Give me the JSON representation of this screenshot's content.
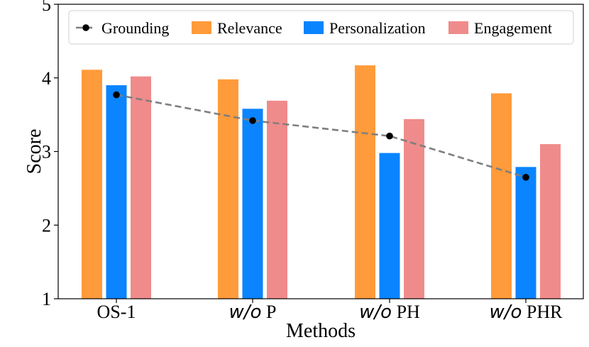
{
  "chart_data": {
    "type": "bar",
    "xlabel": "Methods",
    "ylabel": "Score",
    "ylim": [
      1,
      5
    ],
    "yticks": [
      "1",
      "2",
      "3",
      "4",
      "5"
    ],
    "categories": [
      {
        "prefix": "",
        "name": "OS-1"
      },
      {
        "prefix": "w/o",
        "name": " P"
      },
      {
        "prefix": "w/o",
        "name": " PH"
      },
      {
        "prefix": "w/o",
        "name": " PHR"
      }
    ],
    "series": [
      {
        "name": "Relevance",
        "color": "#FF9B3A",
        "values": [
          4.11,
          3.98,
          4.17,
          3.79
        ]
      },
      {
        "name": "Personalization",
        "color": "#0A84FF",
        "values": [
          3.9,
          3.58,
          2.98,
          2.79
        ]
      },
      {
        "name": "Engagement",
        "color": "#F08B8B",
        "values": [
          4.02,
          3.69,
          3.44,
          3.1
        ]
      }
    ],
    "line_series": {
      "name": "Grounding",
      "color": "#7F7F7F",
      "marker_color": "#000000",
      "style": "dashed",
      "values": [
        3.77,
        3.42,
        3.21,
        2.65
      ]
    },
    "legend": {
      "position": "top",
      "order": [
        "Grounding",
        "Relevance",
        "Personalization",
        "Engagement"
      ]
    }
  }
}
